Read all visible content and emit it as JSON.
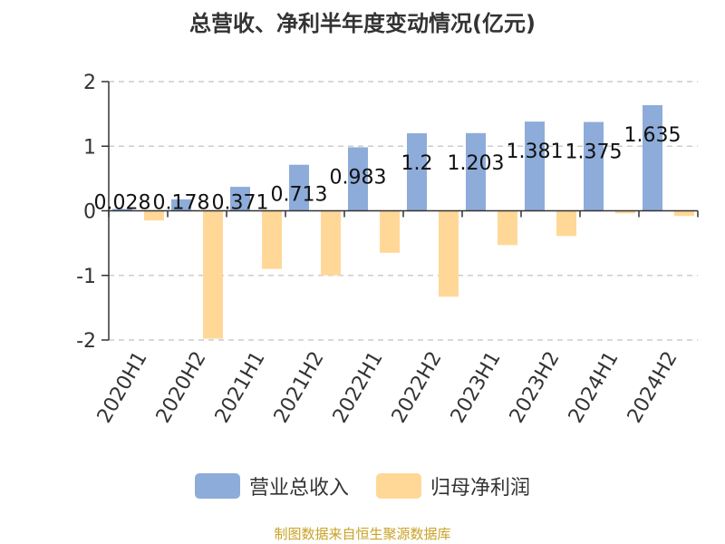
{
  "chart_data": {
    "type": "bar",
    "title": "总营收、净利半年度变动情况(亿元)",
    "categories": [
      "2020H1",
      "2020H2",
      "2021H1",
      "2021H2",
      "2022H1",
      "2022H2",
      "2023H1",
      "2023H2",
      "2024H1",
      "2024H2"
    ],
    "series": [
      {
        "name": "营业总收入",
        "color": "#8eacd9",
        "values": [
          0.028,
          0.178,
          0.371,
          0.713,
          0.983,
          1.2,
          1.203,
          1.381,
          1.375,
          1.635
        ],
        "labels": [
          "0.028",
          "0.178",
          "0.371",
          "0.713",
          "0.983",
          "1.2",
          "1.203",
          "1.381",
          "1.375",
          "1.635"
        ]
      },
      {
        "name": "归母净利润",
        "color": "#ffd898",
        "values": [
          -0.15,
          -1.98,
          -0.9,
          -1.0,
          -0.65,
          -1.33,
          -0.53,
          -0.39,
          -0.04,
          -0.08
        ]
      }
    ],
    "ylim": [
      -2,
      2
    ],
    "yticks": [
      2,
      1,
      0,
      -1,
      -2
    ],
    "grid": true,
    "legend_position": "bottom"
  },
  "source_text": "制图数据来自恒生聚源数据库"
}
